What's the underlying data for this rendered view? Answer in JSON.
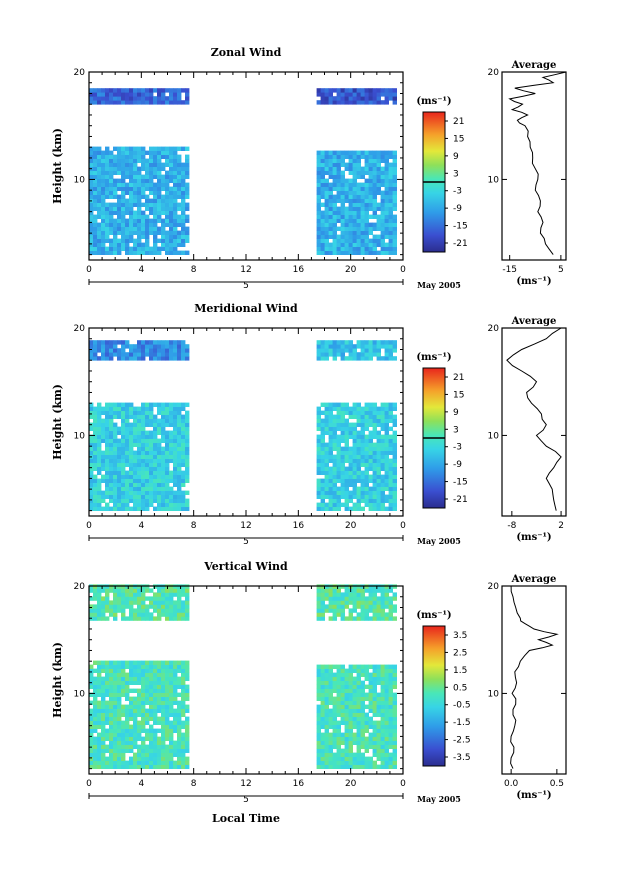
{
  "figure": {
    "xlabel": "Local Time",
    "date_label": "May 2005",
    "day_label": "5",
    "x_ticks": [
      "0",
      "4",
      "8",
      "12",
      "16",
      "20",
      "0"
    ],
    "y_ticks": [
      "10",
      "20"
    ],
    "ylabel": "Height (km)"
  },
  "chart_data": [
    {
      "type": "heatmap",
      "title": "Zonal Wind",
      "xlabel": "",
      "ylabel": "Height (km)",
      "xlim": [
        0,
        24
      ],
      "ylim": [
        2.5,
        20
      ],
      "colorbar": {
        "unit": "(ms⁻¹)",
        "ticks": [
          "21",
          "15",
          "9",
          "3",
          "-3",
          "-9",
          "-15",
          "-21"
        ],
        "range": [
          -24,
          24
        ]
      },
      "data_segments": [
        {
          "x": [
            0,
            7.6
          ],
          "height_km": [
            3.0,
            12.7
          ],
          "typical_value": -8
        },
        {
          "x": [
            0,
            7.6
          ],
          "height_km": [
            17.0,
            18.4
          ],
          "typical_value": -16
        },
        {
          "x": [
            17.4,
            23.4
          ],
          "height_km": [
            3.0,
            12.4
          ],
          "typical_value": -8
        },
        {
          "x": [
            17.4,
            23.4
          ],
          "height_km": [
            17.0,
            18.4
          ],
          "typical_value": -18
        }
      ],
      "profile": {
        "title": "Average",
        "xlabel": "(ms⁻¹)",
        "x_ticks": [
          "-15",
          "5"
        ],
        "xlim": [
          -18,
          7
        ],
        "y_ticks": [
          "10",
          "20"
        ],
        "height_km": [
          3,
          4,
          5,
          6,
          7,
          8,
          9,
          10,
          11,
          12,
          13,
          14,
          15,
          15.5,
          16,
          16.5,
          17,
          17.5,
          18,
          18.5,
          19,
          19.5,
          20
        ],
        "values": [
          2,
          -1,
          -3,
          -2,
          -4,
          -3,
          -5,
          -4,
          -5,
          -6,
          -7,
          -8,
          -9,
          -12,
          -8,
          -14,
          -10,
          -15,
          -5,
          -13,
          2,
          -2,
          7
        ]
      }
    },
    {
      "type": "heatmap",
      "title": "Meridional Wind",
      "xlabel": "",
      "ylabel": "Height (km)",
      "xlim": [
        0,
        24
      ],
      "ylim": [
        2.5,
        20
      ],
      "colorbar": {
        "unit": "(ms⁻¹)",
        "ticks": [
          "21",
          "15",
          "9",
          "3",
          "-3",
          "-9",
          "-15",
          "-21"
        ],
        "range": [
          -24,
          24
        ]
      },
      "data_segments": [
        {
          "x": [
            0,
            7.6
          ],
          "height_km": [
            3.0,
            13.0
          ],
          "typical_value": -4
        },
        {
          "x": [
            0,
            7.6
          ],
          "height_km": [
            17.0,
            18.6
          ],
          "typical_value": -12
        },
        {
          "x": [
            17.4,
            23.4
          ],
          "height_km": [
            3.0,
            13.0
          ],
          "typical_value": -4
        },
        {
          "x": [
            17.4,
            23.4
          ],
          "height_km": [
            17.0,
            18.6
          ],
          "typical_value": -6
        }
      ],
      "profile": {
        "title": "Average",
        "xlabel": "(ms⁻¹)",
        "x_ticks": [
          "-8",
          "2"
        ],
        "xlim": [
          -10,
          3
        ],
        "y_ticks": [
          "10",
          "20"
        ],
        "height_km": [
          3,
          4,
          5,
          6,
          7,
          8,
          9,
          10,
          11,
          12,
          13,
          14,
          15,
          16,
          17,
          18,
          19,
          20
        ],
        "values": [
          1,
          0.5,
          0.2,
          -1,
          0.5,
          2,
          -1,
          -3,
          -1,
          -2,
          -4,
          -5,
          -3,
          -6,
          -9,
          -6,
          -1,
          2
        ]
      }
    },
    {
      "type": "heatmap",
      "title": "Vertical Wind",
      "xlabel": "Local Time",
      "ylabel": "Height (km)",
      "xlim": [
        0,
        24
      ],
      "ylim": [
        2.5,
        20
      ],
      "colorbar": {
        "unit": "(ms⁻¹)",
        "ticks": [
          "3.5",
          "2.5",
          "1.5",
          "0.5",
          "-0.5",
          "-1.5",
          "-2.5",
          "-3.5"
        ],
        "range": [
          -4,
          4
        ]
      },
      "data_segments": [
        {
          "x": [
            0,
            7.6
          ],
          "height_km": [
            3.0,
            12.8
          ],
          "typical_value": 0
        },
        {
          "x": [
            0,
            7.6
          ],
          "height_km": [
            16.8,
            19.8
          ],
          "typical_value": 0.2
        },
        {
          "x": [
            17.4,
            23.4
          ],
          "height_km": [
            3.0,
            12.4
          ],
          "typical_value": 0
        },
        {
          "x": [
            17.4,
            23.4
          ],
          "height_km": [
            16.8,
            19.8
          ],
          "typical_value": 0.2
        }
      ],
      "profile": {
        "title": "Average",
        "xlabel": "(ms⁻¹)",
        "x_ticks": [
          "0.0",
          "0.5"
        ],
        "xlim": [
          -0.1,
          0.6
        ],
        "y_ticks": [
          "10",
          "20"
        ],
        "height_km": [
          3,
          4,
          5,
          6,
          7,
          8,
          9,
          10,
          11,
          12,
          13,
          14,
          14.5,
          15,
          15.5,
          16,
          16.5,
          17,
          18,
          19,
          20
        ],
        "values": [
          0.02,
          0.0,
          0.03,
          0.0,
          0.04,
          0.02,
          0.05,
          0.01,
          0.06,
          0.04,
          0.1,
          0.2,
          0.45,
          0.3,
          0.5,
          0.25,
          0.15,
          0.1,
          0.05,
          0.02,
          0.0
        ]
      }
    }
  ]
}
